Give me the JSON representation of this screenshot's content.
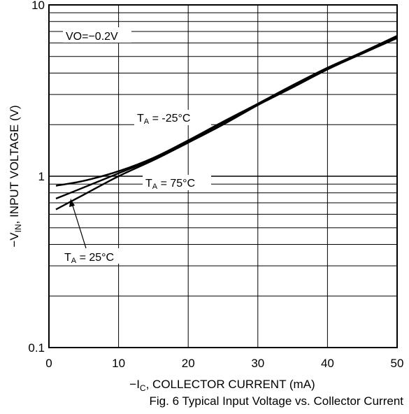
{
  "chart_data": {
    "type": "line",
    "title": "",
    "xlabel_main": "−I",
    "xlabel_sub": "C",
    "xlabel_rest": ", COLLECTOR CURRENT (mA)",
    "ylabel_main": "−V",
    "ylabel_sub": "IN",
    "ylabel_rest": ", INPUT VOLTAGE (V)",
    "x_scale": "linear",
    "y_scale": "log",
    "xlim": [
      0,
      50
    ],
    "ylim": [
      0.1,
      10
    ],
    "x_ticks": [
      0,
      10,
      20,
      30,
      40,
      50
    ],
    "x_tick_labels": [
      "0",
      "10",
      "20",
      "30",
      "40",
      "50"
    ],
    "y_ticks": [
      0.1,
      1,
      10
    ],
    "y_tick_labels": [
      "0.1",
      "1",
      "10"
    ],
    "grid": true,
    "series": [
      {
        "name": "TA = -25°C",
        "x": [
          1,
          5,
          10,
          15,
          20,
          25,
          30,
          35,
          40,
          45,
          50
        ],
        "y": [
          0.64,
          0.78,
          1.0,
          1.24,
          1.57,
          2.0,
          2.6,
          3.3,
          4.2,
          5.2,
          6.4
        ]
      },
      {
        "name": "TA = 25°C",
        "x": [
          1,
          5,
          10,
          15,
          20,
          25,
          30,
          35,
          40,
          45,
          50
        ],
        "y": [
          0.74,
          0.86,
          1.04,
          1.26,
          1.6,
          2.05,
          2.62,
          3.35,
          4.25,
          5.25,
          6.5
        ]
      },
      {
        "name": "TA = 75°C",
        "x": [
          1,
          5,
          10,
          15,
          20,
          25,
          30,
          35,
          40,
          45,
          50
        ],
        "y": [
          0.88,
          0.94,
          1.07,
          1.28,
          1.62,
          2.08,
          2.65,
          3.4,
          4.3,
          5.3,
          6.6
        ]
      }
    ],
    "annotations": {
      "vo": "VO=−0.2V",
      "t_m25_main": "T",
      "t_m25_sub": "A",
      "t_m25_rest": " = -25°C",
      "t_75_main": "T",
      "t_75_sub": "A",
      "t_75_rest": " = 75°C",
      "t_25_main": "T",
      "t_25_sub": "A",
      "t_25_rest": " = 25°C"
    },
    "caption": "Fig. 6  Typical Input Voltage vs. Collector Current"
  }
}
